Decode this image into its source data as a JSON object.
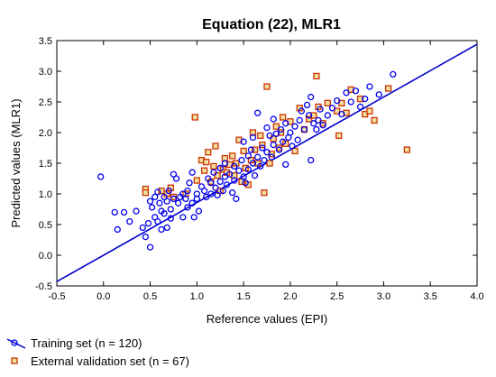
{
  "chart_data": {
    "type": "scatter",
    "title": "Equation (22), MLR1",
    "xlabel": "Reference values (EPI)",
    "ylabel": "Predicted values (MLR1)",
    "xlim": [
      -0.5,
      4.0
    ],
    "ylim": [
      -0.5,
      3.5
    ],
    "xticks": [
      "-0.5",
      "0.0",
      "0.5",
      "1.0",
      "1.5",
      "2.0",
      "2.5",
      "3.0",
      "3.5",
      "4.0"
    ],
    "yticks": [
      "-0.5",
      "0.0",
      "0.5",
      "1.0",
      "1.5",
      "2.0",
      "2.5",
      "3.0",
      "3.5"
    ],
    "grid": false,
    "legend_position": "bottom-left",
    "fit_line": {
      "intercept": 0.0,
      "slope": 0.86,
      "color": "#0000cc"
    },
    "series": [
      {
        "name": "Training set (n = 120)",
        "marker": "circle",
        "color": "#0000ee",
        "points": [
          [
            -0.03,
            1.28
          ],
          [
            0.12,
            0.7
          ],
          [
            0.15,
            0.42
          ],
          [
            0.22,
            0.7
          ],
          [
            0.28,
            0.55
          ],
          [
            0.35,
            0.72
          ],
          [
            0.42,
            0.45
          ],
          [
            0.45,
            0.3
          ],
          [
            0.48,
            0.52
          ],
          [
            0.5,
            0.13
          ],
          [
            0.5,
            0.88
          ],
          [
            0.52,
            0.78
          ],
          [
            0.55,
            0.95
          ],
          [
            0.55,
            0.62
          ],
          [
            0.58,
            0.55
          ],
          [
            0.58,
            1.03
          ],
          [
            0.6,
            0.85
          ],
          [
            0.62,
            0.42
          ],
          [
            0.62,
            0.72
          ],
          [
            0.65,
            0.95
          ],
          [
            0.65,
            0.68
          ],
          [
            0.68,
            0.88
          ],
          [
            0.68,
            0.45
          ],
          [
            0.7,
            1.05
          ],
          [
            0.72,
            0.75
          ],
          [
            0.72,
            0.6
          ],
          [
            0.75,
            1.32
          ],
          [
            0.75,
            0.92
          ],
          [
            0.78,
            1.25
          ],
          [
            0.8,
            0.85
          ],
          [
            0.82,
            0.95
          ],
          [
            0.85,
            1.0
          ],
          [
            0.85,
            0.62
          ],
          [
            0.88,
            0.92
          ],
          [
            0.9,
            1.05
          ],
          [
            0.9,
            0.78
          ],
          [
            0.92,
            1.18
          ],
          [
            0.95,
            1.35
          ],
          [
            0.95,
            0.85
          ],
          [
            0.97,
            0.62
          ],
          [
            1.0,
            1.0
          ],
          [
            1.0,
            0.92
          ],
          [
            1.02,
            0.72
          ],
          [
            1.05,
            1.12
          ],
          [
            1.08,
            1.05
          ],
          [
            1.1,
            0.95
          ],
          [
            1.12,
            1.25
          ],
          [
            1.15,
            1.18
          ],
          [
            1.15,
            1.0
          ],
          [
            1.18,
            1.35
          ],
          [
            1.2,
            1.1
          ],
          [
            1.22,
            0.98
          ],
          [
            1.25,
            1.42
          ],
          [
            1.25,
            1.2
          ],
          [
            1.28,
            1.05
          ],
          [
            1.3,
            1.5
          ],
          [
            1.3,
            1.28
          ],
          [
            1.32,
            1.15
          ],
          [
            1.35,
            1.32
          ],
          [
            1.38,
            1.02
          ],
          [
            1.4,
            1.45
          ],
          [
            1.4,
            1.22
          ],
          [
            1.42,
            0.92
          ],
          [
            1.45,
            1.38
          ],
          [
            1.48,
            1.55
          ],
          [
            1.5,
            1.85
          ],
          [
            1.5,
            1.28
          ],
          [
            1.52,
            1.18
          ],
          [
            1.55,
            1.62
          ],
          [
            1.55,
            1.4
          ],
          [
            1.58,
            1.72
          ],
          [
            1.6,
            1.92
          ],
          [
            1.6,
            1.5
          ],
          [
            1.62,
            1.3
          ],
          [
            1.65,
            1.6
          ],
          [
            1.65,
            2.32
          ],
          [
            1.68,
            1.45
          ],
          [
            1.7,
            1.75
          ],
          [
            1.72,
            1.55
          ],
          [
            1.75,
            2.08
          ],
          [
            1.75,
            1.68
          ],
          [
            1.78,
            1.95
          ],
          [
            1.8,
            1.6
          ],
          [
            1.82,
            2.22
          ],
          [
            1.82,
            1.8
          ],
          [
            1.85,
            1.98
          ],
          [
            1.88,
            1.72
          ],
          [
            1.9,
            2.05
          ],
          [
            1.92,
            1.85
          ],
          [
            1.95,
            1.48
          ],
          [
            1.95,
            2.15
          ],
          [
            1.98,
            1.92
          ],
          [
            2.0,
            2.0
          ],
          [
            2.02,
            1.78
          ],
          [
            2.05,
            2.1
          ],
          [
            2.08,
            1.88
          ],
          [
            2.1,
            2.2
          ],
          [
            2.12,
            2.35
          ],
          [
            2.15,
            2.05
          ],
          [
            2.18,
            2.45
          ],
          [
            2.2,
            2.28
          ],
          [
            2.22,
            2.58
          ],
          [
            2.22,
            1.55
          ],
          [
            2.25,
            2.15
          ],
          [
            2.28,
            2.05
          ],
          [
            2.3,
            2.2
          ],
          [
            2.32,
            2.38
          ],
          [
            2.35,
            2.12
          ],
          [
            2.4,
            2.28
          ],
          [
            2.45,
            2.4
          ],
          [
            2.5,
            2.52
          ],
          [
            2.55,
            2.3
          ],
          [
            2.6,
            2.65
          ],
          [
            2.65,
            2.5
          ],
          [
            2.7,
            2.68
          ],
          [
            2.75,
            2.42
          ],
          [
            2.8,
            2.55
          ],
          [
            2.85,
            2.75
          ],
          [
            2.95,
            2.62
          ],
          [
            3.1,
            2.95
          ]
        ]
      },
      {
        "name": "External validation set (n = 67)",
        "marker": "square",
        "color": "#cc3300",
        "fill": "#f0e0a0",
        "points": [
          [
            0.45,
            1.08
          ],
          [
            0.45,
            1.02
          ],
          [
            0.62,
            1.05
          ],
          [
            0.68,
            1.0
          ],
          [
            0.72,
            1.1
          ],
          [
            0.75,
            0.95
          ],
          [
            0.88,
            1.0
          ],
          [
            0.98,
            2.25
          ],
          [
            1.0,
            1.22
          ],
          [
            1.05,
            1.55
          ],
          [
            1.08,
            1.38
          ],
          [
            1.1,
            1.52
          ],
          [
            1.12,
            1.68
          ],
          [
            1.15,
            1.2
          ],
          [
            1.18,
            1.45
          ],
          [
            1.2,
            1.78
          ],
          [
            1.22,
            1.3
          ],
          [
            1.25,
            1.05
          ],
          [
            1.28,
            1.4
          ],
          [
            1.3,
            1.58
          ],
          [
            1.32,
            1.35
          ],
          [
            1.35,
            1.48
          ],
          [
            1.38,
            1.62
          ],
          [
            1.4,
            1.3
          ],
          [
            1.42,
            1.5
          ],
          [
            1.45,
            1.88
          ],
          [
            1.48,
            1.2
          ],
          [
            1.5,
            1.7
          ],
          [
            1.52,
            1.42
          ],
          [
            1.55,
            1.15
          ],
          [
            1.58,
            1.55
          ],
          [
            1.6,
            2.0
          ],
          [
            1.62,
            1.72
          ],
          [
            1.65,
            1.5
          ],
          [
            1.68,
            1.95
          ],
          [
            1.7,
            1.8
          ],
          [
            1.72,
            1.02
          ],
          [
            1.75,
            2.75
          ],
          [
            1.78,
            1.5
          ],
          [
            1.8,
            1.65
          ],
          [
            1.82,
            1.9
          ],
          [
            1.85,
            2.1
          ],
          [
            1.88,
            1.75
          ],
          [
            1.9,
            2.0
          ],
          [
            1.92,
            2.25
          ],
          [
            1.95,
            1.82
          ],
          [
            2.0,
            2.18
          ],
          [
            2.05,
            1.7
          ],
          [
            2.1,
            2.4
          ],
          [
            2.15,
            2.05
          ],
          [
            2.2,
            2.22
          ],
          [
            2.25,
            2.28
          ],
          [
            2.28,
            2.92
          ],
          [
            2.3,
            2.42
          ],
          [
            2.35,
            2.15
          ],
          [
            2.4,
            2.48
          ],
          [
            2.5,
            2.35
          ],
          [
            2.52,
            1.95
          ],
          [
            2.55,
            2.48
          ],
          [
            2.6,
            2.32
          ],
          [
            2.65,
            2.7
          ],
          [
            2.75,
            2.55
          ],
          [
            2.8,
            2.3
          ],
          [
            2.85,
            2.35
          ],
          [
            2.9,
            2.2
          ],
          [
            3.05,
            2.72
          ],
          [
            3.25,
            1.72
          ]
        ]
      }
    ]
  },
  "legend": {
    "items": [
      {
        "label": "Training set (n = 120)"
      },
      {
        "label": "External validation set (n = 67)"
      }
    ]
  }
}
